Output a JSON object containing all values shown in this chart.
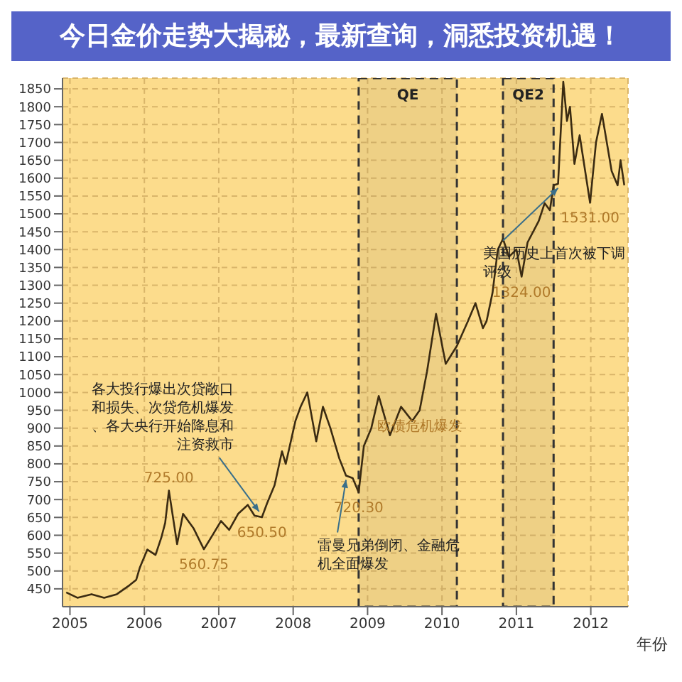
{
  "chart_data": {
    "type": "line",
    "title": "今日金价走势大揭秘，最新查询，洞悉投资机遇！",
    "xlabel": "年份",
    "xlim": [
      2004.9,
      2012.5
    ],
    "xticks": [
      2005,
      2006,
      2007,
      2008,
      2009,
      2010,
      2011,
      2012
    ],
    "ylim": [
      400,
      1880
    ],
    "yticks": [
      450,
      500,
      550,
      600,
      650,
      700,
      750,
      800,
      850,
      900,
      950,
      1000,
      1050,
      1100,
      1150,
      1200,
      1250,
      1300,
      1350,
      1400,
      1450,
      1500,
      1550,
      1600,
      1650,
      1700,
      1750,
      1800,
      1850
    ],
    "grid": true,
    "marker": "none",
    "line_style": "solid",
    "series": [
      {
        "color": "#3b2b12",
        "x": [
          2004.95,
          2005.1,
          2005.29,
          2005.46,
          2005.63,
          2005.8,
          2005.89,
          2005.94,
          2006.04,
          2006.15,
          2006.23,
          2006.28,
          2006.33,
          2006.44,
          2006.52,
          2006.66,
          2006.8,
          2006.93,
          2007.03,
          2007.14,
          2007.26,
          2007.39,
          2007.48,
          2007.58,
          2007.65,
          2007.75,
          2007.85,
          2007.9,
          2008.03,
          2008.1,
          2008.19,
          2008.31,
          2008.4,
          2008.5,
          2008.62,
          2008.71,
          2008.8,
          2008.88,
          2008.95,
          2009.05,
          2009.15,
          2009.3,
          2009.45,
          2009.6,
          2009.7,
          2009.8,
          2009.92,
          2010.05,
          2010.2,
          2010.35,
          2010.45,
          2010.55,
          2010.6,
          2010.68,
          2010.75,
          2010.82,
          2010.9,
          2011.0,
          2011.07,
          2011.15,
          2011.3,
          2011.38,
          2011.45,
          2011.5,
          2011.56,
          2011.63,
          2011.68,
          2011.72,
          2011.78,
          2011.85,
          2011.99,
          2012.07,
          2012.15,
          2012.28,
          2012.36,
          2012.4,
          2012.45
        ],
        "values": [
          440,
          425,
          435,
          425,
          435,
          460,
          475,
          510,
          560,
          545,
          595,
          635,
          725,
          575,
          660,
          620,
          560.75,
          605,
          640,
          615,
          660,
          685,
          655,
          650.5,
          690,
          740,
          835,
          800,
          920,
          960,
          1000,
          863,
          960,
          900,
          815,
          767,
          760,
          720.3,
          850,
          900,
          990,
          880,
          960,
          920,
          950,
          1060,
          1220,
          1080,
          1130,
          1200,
          1250,
          1180,
          1200,
          1280,
          1400,
          1430,
          1380,
          1400,
          1324,
          1420,
          1480,
          1530,
          1510,
          1580,
          1584,
          1870,
          1760,
          1800,
          1640,
          1720,
          1531,
          1700,
          1780,
          1620,
          1580,
          1650,
          1580
        ]
      }
    ],
    "bands": [
      {
        "axis": "x",
        "from": 2008.88,
        "to": 2010.2,
        "label": "QE"
      },
      {
        "axis": "x",
        "from": 2010.82,
        "to": 2011.5,
        "label": "QE2"
      }
    ],
    "annotations": [
      {
        "text": "725.00",
        "x": 2006.33,
        "y": 725
      },
      {
        "text": "560.75",
        "x": 2006.8,
        "y": 560.75
      },
      {
        "text": "650.50",
        "x": 2007.58,
        "y": 650.5
      },
      {
        "text": "720.30",
        "x": 2008.88,
        "y": 720.3
      },
      {
        "text": "1324.00",
        "x": 2011.07,
        "y": 1324
      },
      {
        "text": "1531.00",
        "x": 2011.99,
        "y": 1531
      },
      {
        "text": "各大投行爆出次贷敞口和损失、次贷危机爆发、各大央行开始降息和注资救市",
        "x": 2007.58,
        "y": 650.5
      },
      {
        "text": "雷曼兄弟倒闭、金融危机全面爆发",
        "x": 2008.71,
        "y": 767
      },
      {
        "text": "欧债危机爆发",
        "x": 2009.7,
        "y": 950
      },
      {
        "text": "美国历史上首次被下调评级",
        "x": 2011.56,
        "y": 1584
      }
    ]
  }
}
